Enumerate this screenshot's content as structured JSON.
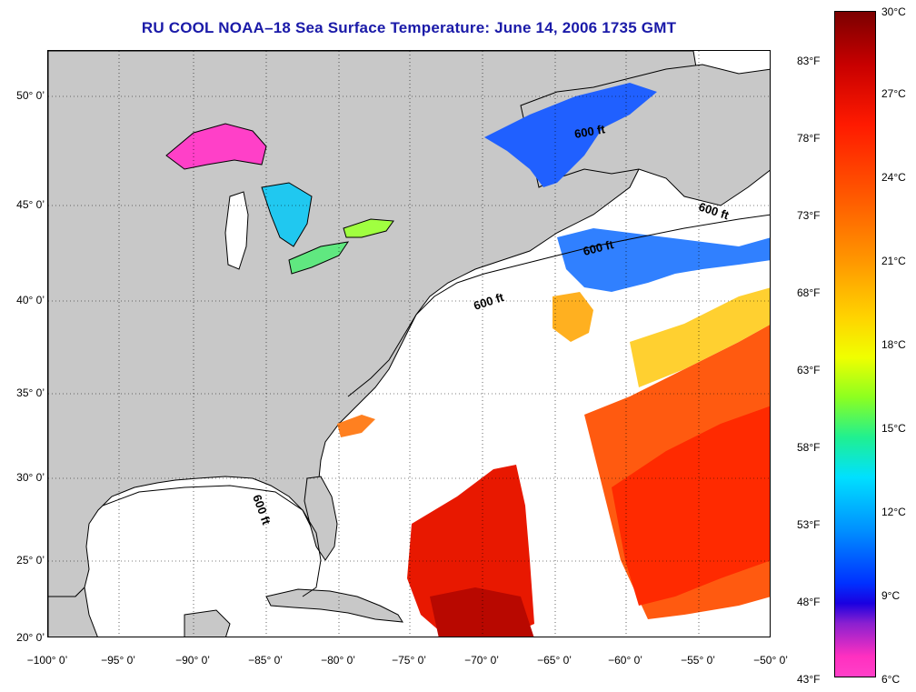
{
  "title": "RU COOL  NOAA–18  Sea Surface Temperature:  June 14, 2006 1735 GMT",
  "map": {
    "lon_range": [
      -100,
      -50
    ],
    "lat_range": [
      20,
      52
    ],
    "grid": true,
    "land_color": "#c8c8c8",
    "water_color": "#ffffff",
    "y_ticks": [
      "50° 0’",
      "45° 0’",
      "40° 0’",
      "35° 0’",
      "30° 0’",
      "25° 0’",
      "20° 0’"
    ],
    "x_ticks": [
      "−100° 0’",
      "−95° 0’",
      "−90° 0’",
      "−85° 0’",
      "−80° 0’",
      "−75° 0’",
      "−70° 0’",
      "−65° 0’",
      "−60° 0’",
      "−55° 0’",
      "−50° 0’"
    ],
    "contour_labels": [
      "600 ft",
      "600 ft",
      "600 ft",
      "600 ft",
      "600 ft"
    ]
  },
  "colorbar": {
    "fahrenheit": [
      "83°F",
      "78°F",
      "73°F",
      "68°F",
      "63°F",
      "58°F",
      "53°F",
      "48°F",
      "43°F"
    ],
    "celsius": [
      "30°C",
      "27°C",
      "24°C",
      "21°C",
      "18°C",
      "15°C",
      "12°C",
      "9°C",
      "6°C"
    ],
    "colors": {
      "hot": "#7b0000",
      "red": "#ff1a00",
      "orange": "#ff9a00",
      "yellow": "#f0ff00",
      "green": "#20f090",
      "cyan": "#00e0ff",
      "blue": "#0030ff",
      "magenta": "#ff40c8"
    }
  }
}
